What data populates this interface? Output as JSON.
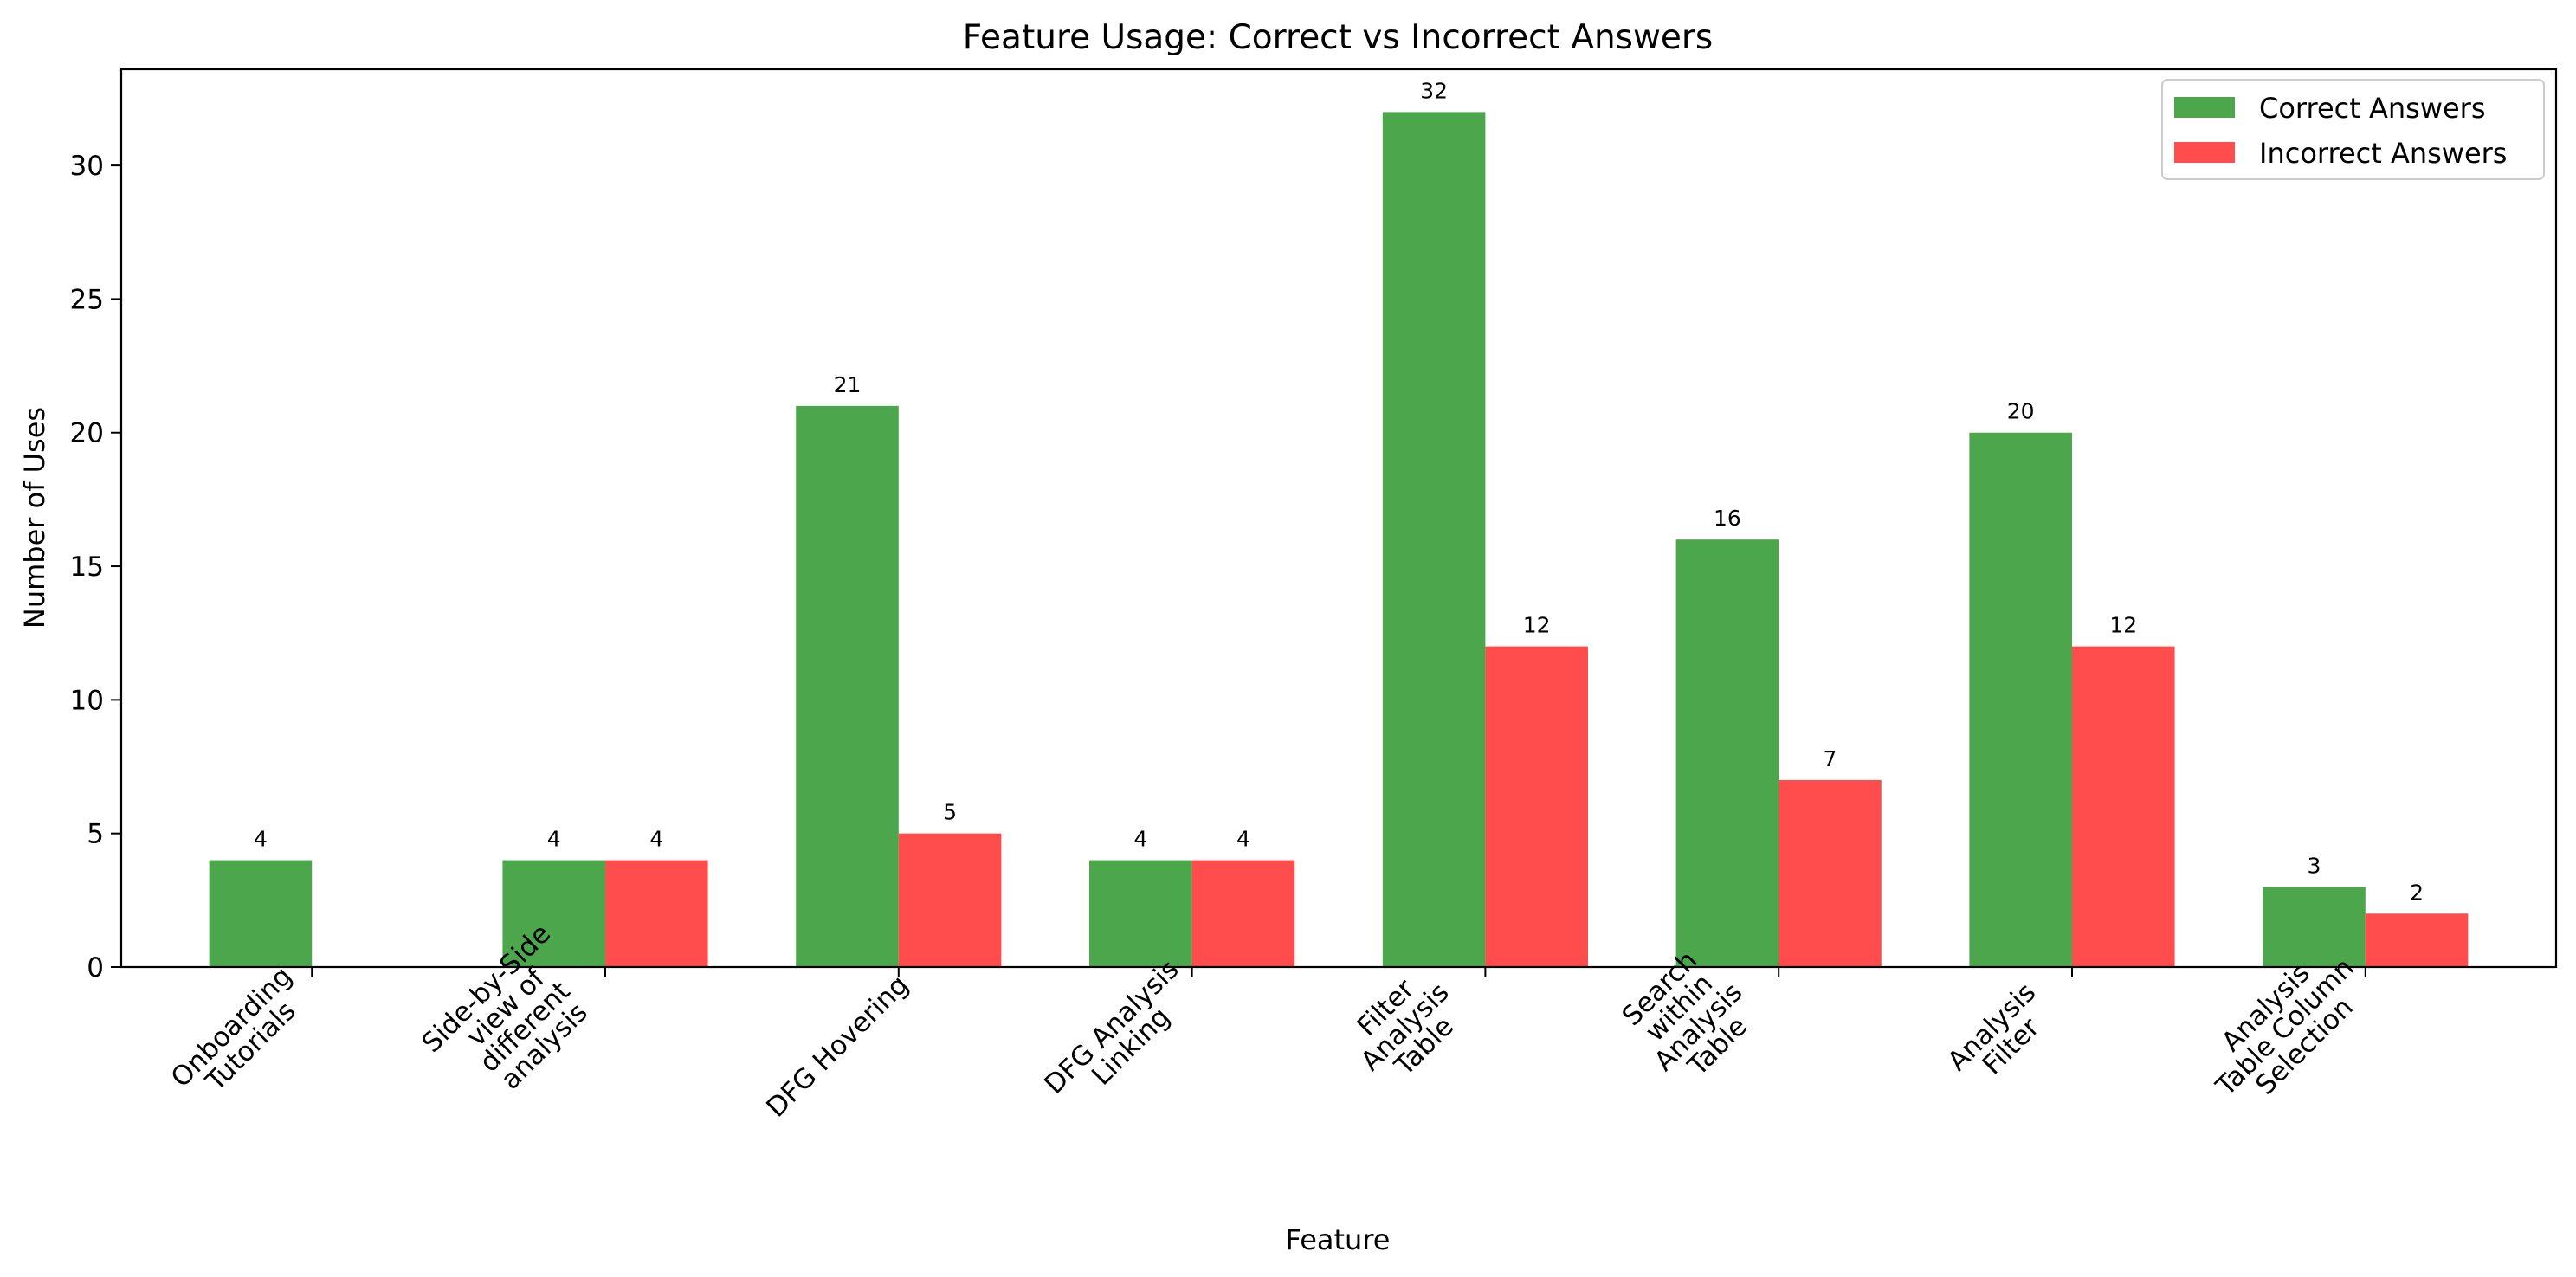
{
  "chart_data": {
    "type": "bar",
    "title": "Feature Usage: Correct vs Incorrect Answers",
    "xlabel": "Feature",
    "ylabel": "Number of Uses",
    "ylim": [
      0,
      33.6
    ],
    "yticks": [
      0,
      5,
      10,
      15,
      20,
      25,
      30
    ],
    "grid": false,
    "legend_position": "top-right",
    "categories": [
      [
        "Onboarding",
        "Tutorials"
      ],
      [
        "Side-by-Side",
        "view of",
        "different",
        "analysis"
      ],
      [
        "DFG Hovering"
      ],
      [
        "DFG Analysis",
        "Linking"
      ],
      [
        "Filter",
        "Analysis",
        "Table"
      ],
      [
        "Search",
        "within",
        "Analysis",
        "Table"
      ],
      [
        "Analysis",
        "Filter"
      ],
      [
        "Analysis",
        "Table Column",
        "Selection"
      ]
    ],
    "series": [
      {
        "name": "Correct Answers",
        "color": "#4ca64c",
        "values": [
          4,
          4,
          21,
          4,
          32,
          16,
          20,
          3
        ]
      },
      {
        "name": "Incorrect Answers",
        "color": "#ff4c4c",
        "values": [
          0,
          4,
          5,
          4,
          12,
          7,
          12,
          2
        ]
      }
    ]
  }
}
